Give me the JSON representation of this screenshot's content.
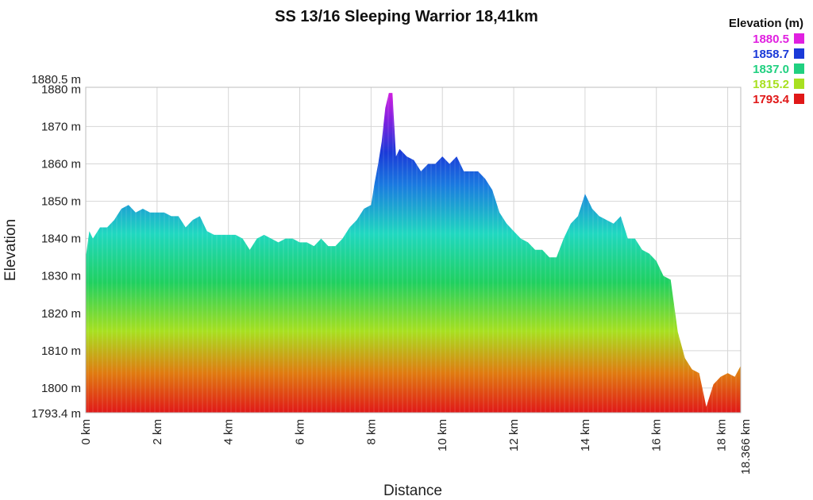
{
  "chart_data": {
    "type": "area",
    "title": "SS 13/16 Sleeping Warrior 18,41km",
    "xlabel": "Distance",
    "ylabel": "Elevation",
    "xlim": [
      0,
      18.366
    ],
    "ylim": [
      1793.4,
      1880.5
    ],
    "grid": true,
    "x_ticks": [
      "0 km",
      "2 km",
      "4 km",
      "6 km",
      "8 km",
      "10 km",
      "12 km",
      "14 km",
      "16 km",
      "18 km",
      "18.366 km"
    ],
    "x_tick_values": [
      0,
      2,
      4,
      6,
      8,
      10,
      12,
      14,
      16,
      18,
      18.366
    ],
    "y_ticks": [
      "1793.4 m",
      "1800 m",
      "1810 m",
      "1820 m",
      "1830 m",
      "1840 m",
      "1850 m",
      "1860 m",
      "1870 m",
      "1880 m",
      "1880.5 m"
    ],
    "y_tick_values": [
      1793.4,
      1800,
      1810,
      1820,
      1830,
      1840,
      1850,
      1860,
      1870,
      1880,
      1880.5
    ],
    "legend": {
      "title": "Elevation (m)",
      "position": "top-right",
      "entries": [
        {
          "label": "1880.5",
          "color": "#e020e0"
        },
        {
          "label": "1858.7",
          "color": "#1a3ad8"
        },
        {
          "label": "1837.0",
          "color": "#20d080"
        },
        {
          "label": "1815.2",
          "color": "#a8e020"
        },
        {
          "label": "1793.4",
          "color": "#e01818"
        }
      ]
    },
    "series": [
      {
        "x": [
          0,
          0.1,
          0.2,
          0.4,
          0.6,
          0.8,
          1.0,
          1.2,
          1.4,
          1.6,
          1.8,
          2.0,
          2.2,
          2.4,
          2.6,
          2.8,
          3.0,
          3.2,
          3.4,
          3.6,
          3.8,
          4.0,
          4.2,
          4.4,
          4.6,
          4.8,
          5.0,
          5.2,
          5.4,
          5.6,
          5.8,
          6.0,
          6.2,
          6.4,
          6.6,
          6.8,
          7.0,
          7.2,
          7.4,
          7.6,
          7.8,
          8.0,
          8.1,
          8.2,
          8.3,
          8.4,
          8.5,
          8.6,
          8.7,
          8.8,
          9.0,
          9.2,
          9.4,
          9.6,
          9.8,
          10.0,
          10.2,
          10.4,
          10.6,
          10.8,
          11.0,
          11.2,
          11.4,
          11.6,
          11.8,
          12.0,
          12.2,
          12.4,
          12.6,
          12.8,
          13.0,
          13.2,
          13.4,
          13.6,
          13.8,
          14.0,
          14.2,
          14.4,
          14.6,
          14.8,
          15.0,
          15.2,
          15.4,
          15.6,
          15.8,
          16.0,
          16.2,
          16.4,
          16.5,
          16.6,
          16.8,
          17.0,
          17.2,
          17.4,
          17.6,
          17.8,
          18.0,
          18.2,
          18.366
        ],
        "y": [
          1835,
          1842,
          1840,
          1843,
          1843,
          1845,
          1848,
          1849,
          1847,
          1848,
          1847,
          1847,
          1847,
          1846,
          1846,
          1843,
          1845,
          1846,
          1842,
          1841,
          1841,
          1841,
          1841,
          1840,
          1837,
          1840,
          1841,
          1840,
          1839,
          1840,
          1840,
          1839,
          1839,
          1838,
          1840,
          1838,
          1838,
          1840,
          1843,
          1845,
          1848,
          1849,
          1855,
          1860,
          1866,
          1875,
          1879,
          1879,
          1862,
          1864,
          1862,
          1861,
          1858,
          1860,
          1860,
          1862,
          1860,
          1862,
          1858,
          1858,
          1858,
          1856,
          1853,
          1847,
          1844,
          1842,
          1840,
          1839,
          1837,
          1837,
          1835,
          1835,
          1840,
          1844,
          1846,
          1852,
          1848,
          1846,
          1845,
          1844,
          1846,
          1840,
          1840,
          1837,
          1836,
          1834,
          1830,
          1829,
          1822,
          1815,
          1808,
          1805,
          1804,
          1795,
          1801,
          1803,
          1804,
          1803,
          1806
        ]
      }
    ]
  }
}
